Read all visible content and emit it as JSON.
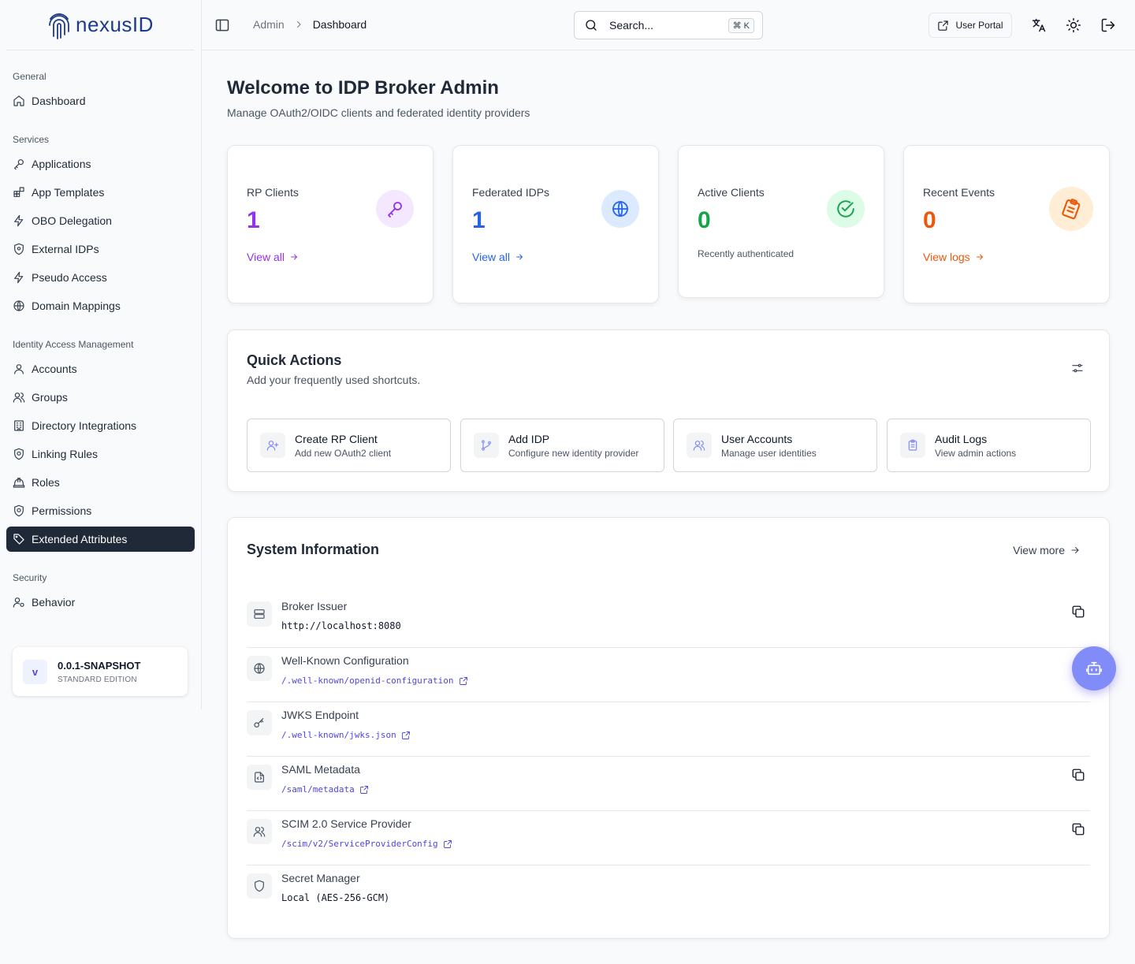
{
  "brand": {
    "name": "nexusID",
    "color": "#1e3a8a"
  },
  "sidebar": {
    "groups": [
      {
        "label": "General",
        "items": [
          {
            "label": "Dashboard",
            "icon": "home-icon"
          }
        ]
      },
      {
        "label": "Services",
        "items": [
          {
            "label": "Applications",
            "icon": "key-icon"
          },
          {
            "label": "App Templates",
            "icon": "blocks-icon"
          },
          {
            "label": "OBO Delegation",
            "icon": "zap-icon"
          },
          {
            "label": "External IDPs",
            "icon": "shield-icon"
          },
          {
            "label": "Pseudo Access",
            "icon": "zap-icon"
          },
          {
            "label": "Domain Mappings",
            "icon": "globe-icon"
          }
        ]
      },
      {
        "label": "Identity Access Management",
        "items": [
          {
            "label": "Accounts",
            "icon": "user-icon"
          },
          {
            "label": "Groups",
            "icon": "users-icon"
          },
          {
            "label": "Directory Integrations",
            "icon": "building-icon"
          },
          {
            "label": "Linking Rules",
            "icon": "shield-check-icon"
          },
          {
            "label": "Roles",
            "icon": "hard-hat-icon"
          },
          {
            "label": "Permissions",
            "icon": "shield-check-icon"
          },
          {
            "label": "Extended Attributes",
            "icon": "tag-icon",
            "active": true
          }
        ]
      },
      {
        "label": "Security",
        "items": [
          {
            "label": "Behavior",
            "icon": "user-cog-icon"
          }
        ]
      }
    ],
    "version": {
      "badge": "v",
      "title": "0.0.1-SNAPSHOT",
      "edition": "STANDARD EDITION"
    }
  },
  "header": {
    "breadcrumb": {
      "parent": "Admin",
      "current": "Dashboard"
    },
    "search": {
      "placeholder": "Search...",
      "shortcut": "⌘ K"
    },
    "user_portal_label": "User Portal"
  },
  "main": {
    "title": "Welcome to IDP Broker Admin",
    "subtitle": "Manage OAuth2/OIDC clients and federated identity providers",
    "stats": [
      {
        "label": "RP Clients",
        "value": "1",
        "link": "View all",
        "color": "#9333ea",
        "icon_bg": "#f3e8ff",
        "icon": "key-icon"
      },
      {
        "label": "Federated IDPs",
        "value": "1",
        "link": "View all",
        "color": "#2563eb",
        "icon_bg": "#dbeafe",
        "icon": "globe-icon"
      },
      {
        "label": "Active Clients",
        "value": "0",
        "note": "Recently authenticated",
        "color": "#16a34a",
        "icon_bg": "#dcfce7",
        "icon": "check-circle-icon"
      },
      {
        "label": "Recent Events",
        "value": "0",
        "link": "View logs",
        "color": "#ea580c",
        "icon_bg": "#ffedd5",
        "icon": "clipboard-icon"
      }
    ],
    "quick_actions": {
      "title": "Quick Actions",
      "subtitle": "Add your frequently used shortcuts.",
      "items": [
        {
          "title": "Create RP Client",
          "desc": "Add new OAuth2 client",
          "icon": "user-plus-icon"
        },
        {
          "title": "Add IDP",
          "desc": "Configure new identity provider",
          "icon": "git-branch-icon"
        },
        {
          "title": "User Accounts",
          "desc": "Manage user identities",
          "icon": "users-icon"
        },
        {
          "title": "Audit Logs",
          "desc": "View admin actions",
          "icon": "clipboard-icon"
        }
      ]
    },
    "system_info": {
      "title": "System Information",
      "view_more": "View more",
      "rows": [
        {
          "label": "Broker Issuer",
          "value": "http://localhost:8080",
          "icon": "server-icon",
          "copy": true
        },
        {
          "label": "Well-Known Configuration",
          "link": "/.well-known/openid-configuration",
          "icon": "globe-icon",
          "copy": false
        },
        {
          "label": "JWKS Endpoint",
          "link": "/.well-known/jwks.json",
          "icon": "key-icon",
          "copy": false
        },
        {
          "label": "SAML Metadata",
          "link": "/saml/metadata",
          "icon": "file-code-icon",
          "copy": true
        },
        {
          "label": "SCIM 2.0 Service Provider",
          "link": "/scim/v2/ServiceProviderConfig",
          "icon": "users-icon",
          "copy": true
        },
        {
          "label": "Secret Manager",
          "value": "Local (AES-256-GCM)",
          "icon": "shield-icon",
          "copy": false
        }
      ]
    }
  }
}
